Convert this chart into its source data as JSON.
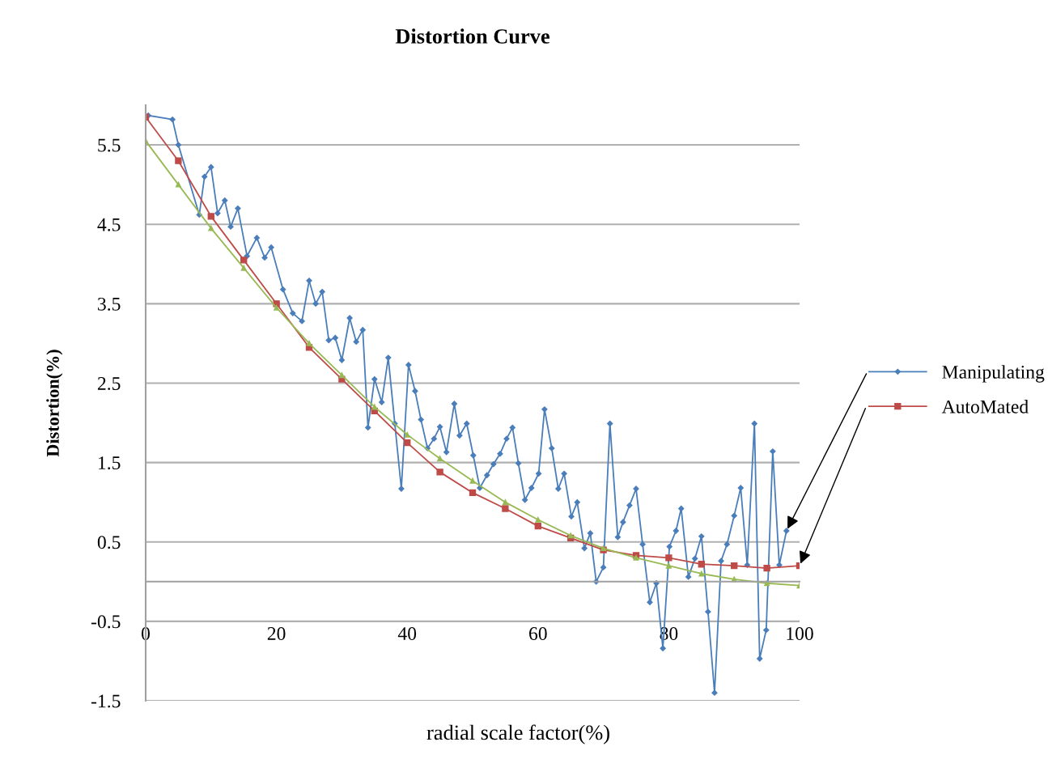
{
  "chart_data": {
    "type": "line",
    "title": "Distortion Curve",
    "xlabel": "radial scale factor(%)",
    "ylabel": "Distortion(%)",
    "xlim": [
      0,
      100
    ],
    "xticks": [
      0,
      20,
      40,
      60,
      80,
      100
    ],
    "ylim": [
      -1.5,
      6
    ],
    "yticks": [
      -1.5,
      -0.5,
      0.5,
      1.5,
      2.5,
      3.5,
      4.5,
      5.5
    ],
    "grid": "y",
    "legend": "right",
    "series": [
      {
        "name": "Manipulating",
        "color": "#4a7ebb",
        "marker": "diamond",
        "x": [
          0.4,
          4.1,
          5,
          8.2,
          9,
          10,
          11,
          12.1,
          13,
          14.1,
          15.5,
          17,
          18.2,
          19.2,
          21,
          22.5,
          23.9,
          25,
          26,
          27,
          28,
          29,
          30,
          31.2,
          32.2,
          33.2,
          34,
          35,
          36.1,
          37.1,
          38.1,
          39.1,
          40.2,
          41.2,
          42.1,
          43.1,
          44.1,
          45,
          46,
          47.2,
          48,
          49.1,
          50.1,
          51.1,
          52.2,
          53.2,
          54.2,
          55.2,
          56.1,
          57,
          58,
          59,
          60.1,
          61,
          62.1,
          63.1,
          64,
          65.1,
          66,
          67.1,
          68,
          68.9,
          70,
          71,
          72.2,
          73,
          74,
          75,
          76,
          77.1,
          78.1,
          79.1,
          80.1,
          81.1,
          81.9,
          83,
          84,
          85,
          86,
          87,
          88,
          88.9,
          90,
          91,
          92,
          93.1,
          93.9,
          94.9,
          95.9,
          96.9,
          98
        ],
        "values": [
          5.87,
          5.82,
          5.5,
          4.62,
          5.1,
          5.22,
          4.64,
          4.8,
          4.47,
          4.7,
          4.1,
          4.33,
          4.08,
          4.21,
          3.68,
          3.38,
          3.28,
          3.79,
          3.5,
          3.65,
          3.04,
          3.07,
          2.79,
          3.32,
          3.02,
          3.17,
          1.94,
          2.55,
          2.26,
          2.82,
          1.99,
          1.17,
          2.73,
          2.4,
          2.04,
          1.68,
          1.8,
          1.95,
          1.63,
          2.24,
          1.84,
          1.99,
          1.59,
          1.18,
          1.34,
          1.48,
          1.61,
          1.8,
          1.94,
          1.49,
          1.03,
          1.18,
          1.36,
          2.17,
          1.68,
          1.17,
          1.36,
          0.82,
          1.0,
          0.42,
          0.61,
          0.0,
          0.18,
          1.99,
          0.56,
          0.75,
          0.96,
          1.17,
          0.47,
          -0.26,
          -0.02,
          -0.84,
          0.44,
          0.64,
          0.92,
          0.06,
          0.29,
          0.57,
          -0.38,
          -1.4,
          0.26,
          0.47,
          0.83,
          1.18,
          0.21,
          1.99,
          -0.97,
          -0.61,
          1.64,
          0.21,
          0.64
        ]
      },
      {
        "name": "AutoMated",
        "color": "#be4b48",
        "marker": "square",
        "x": [
          0,
          5,
          10,
          15,
          20,
          25,
          30,
          35,
          40,
          45,
          50,
          55,
          60,
          65,
          70,
          75,
          80,
          85,
          90,
          95,
          100
        ],
        "values": [
          5.85,
          5.3,
          4.6,
          4.05,
          3.5,
          2.95,
          2.55,
          2.15,
          1.75,
          1.38,
          1.12,
          0.92,
          0.7,
          0.55,
          0.4,
          0.33,
          0.3,
          0.22,
          0.2,
          0.17,
          0.2
        ]
      },
      {
        "color": "#98b954",
        "marker": "triangle",
        "x": [
          0,
          5,
          10,
          15,
          20,
          25,
          30,
          35,
          40,
          45,
          50,
          55,
          60,
          65,
          70,
          75,
          80,
          85,
          90,
          95,
          100
        ],
        "values": [
          5.55,
          5.0,
          4.45,
          3.95,
          3.45,
          3.0,
          2.6,
          2.2,
          1.85,
          1.55,
          1.27,
          1.0,
          0.78,
          0.58,
          0.42,
          0.3,
          0.2,
          0.1,
          0.03,
          -0.02,
          -0.05
        ]
      }
    ]
  }
}
